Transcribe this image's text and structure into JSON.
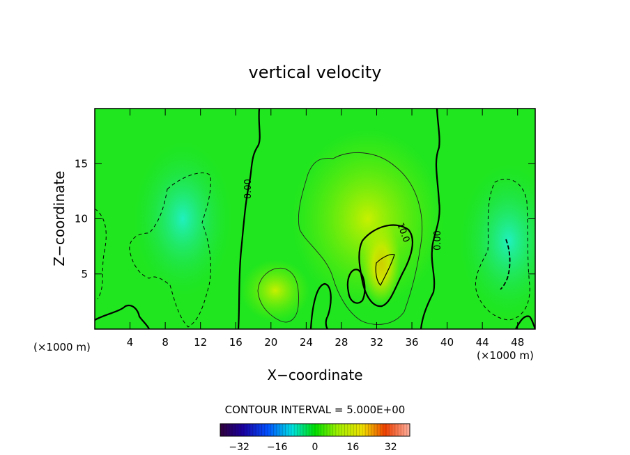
{
  "chart_data": {
    "type": "heatmap",
    "title": "vertical velocity",
    "xlabel": "X−coordinate",
    "ylabel": "Z−coordinate",
    "x_unit_left": "(×1000 m)",
    "x_unit_right": "(×1000 m)",
    "xlim": [
      0,
      50
    ],
    "ylim": [
      0,
      20
    ],
    "x_ticks": [
      4,
      8,
      12,
      16,
      20,
      24,
      28,
      32,
      36,
      40,
      44,
      48
    ],
    "y_ticks": [
      5,
      10,
      15
    ],
    "contour_interval_text": "CONTOUR INTERVAL = 5.000E+00",
    "contour_interval": 5.0,
    "contour_labels": [
      "0.00",
      "10.0",
      "0.00"
    ],
    "colorbar": {
      "range": [
        -40,
        40
      ],
      "ticks": [
        -32,
        -16,
        0,
        16,
        32
      ],
      "tick_labels": [
        "−32",
        "−16",
        "0",
        "16",
        "32"
      ]
    },
    "background_color": "#1fe61f",
    "features": [
      {
        "kind": "updraft_core",
        "x": 32.5,
        "z": 6,
        "value": 14
      },
      {
        "kind": "updraft",
        "x": 31,
        "z": 10,
        "value": 7
      },
      {
        "kind": "updraft",
        "x": 20.5,
        "z": 3.5,
        "value": 5
      },
      {
        "kind": "downdraft",
        "x": 10,
        "z": 10,
        "value": -6
      },
      {
        "kind": "downdraft",
        "x": 47,
        "z": 8,
        "value": -8
      }
    ]
  }
}
